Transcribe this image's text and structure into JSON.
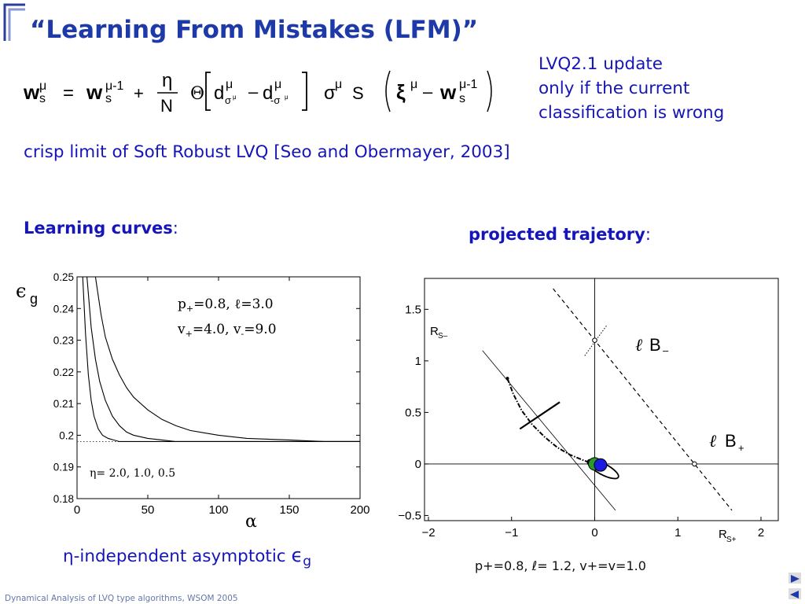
{
  "slide": {
    "title": "“Learning From Mistakes (LFM)”",
    "update_note": [
      "LVQ2.1 update",
      "only if  the current",
      "classification is wrong"
    ],
    "crisp_text": "crisp limit of Soft Robust LVQ  [Seo and Obermayer, 2003]",
    "learning_curves_heading": "Learning curves",
    "learning_curves_colon": ":",
    "trajectory_heading": "projected trajetory",
    "trajectory_colon": ":",
    "asymptotic_prefix": "η-independent asymptotic ",
    "asymptotic_symbol": "ϵ",
    "asymptotic_sub": "g",
    "trajectory_params": "p+=0.8,  ℓ= 1.2, v+=v=1.0",
    "footer": "Dynamical Analysis of LVQ type algorithms, WSOM 2005",
    "accent_color": "#1515b8",
    "title_color": "#1e3aa8"
  },
  "formula": {
    "w_s_mu": "w",
    "eta": "η",
    "N": "N",
    "theta": "Θ",
    "d": "d",
    "sigma_mu": "σ",
    "S": "S",
    "xi": "ξ"
  },
  "nav": {
    "next_icon": "triangle-right-icon",
    "prev_icon": "triangle-left-icon"
  },
  "chart_data": [
    {
      "type": "line",
      "title": "",
      "ylabel_symbol": "ϵ",
      "ylabel_sub": "g",
      "xlabel": "α",
      "xlim": [
        0,
        200
      ],
      "ylim": [
        0.18,
        0.25
      ],
      "xticks": [
        0,
        50,
        100,
        150,
        200
      ],
      "yticks": [
        0.18,
        0.19,
        0.2,
        0.21,
        0.22,
        0.23,
        0.24,
        0.25
      ],
      "ytick_labels": [
        "0.18",
        "0.19",
        "0.2",
        "0.21",
        "0.22",
        "0.23",
        "0.24",
        "0.25"
      ],
      "annotation_line1": "p",
      "annotation_line1_rest": "=0.8,  ℓ=3.0",
      "annotation_line2": "v",
      "annotation_line2_rest": "=4.0,  v",
      "annotation_line2_end": "=9.0",
      "eta_label": "η= 2.0, 1.0, 0.5",
      "asymptote": 0.198,
      "series": [
        {
          "eta": 2.0,
          "x": [
            4,
            6,
            8,
            10,
            12,
            15,
            18,
            22,
            26,
            30,
            35,
            40,
            50,
            60,
            80,
            100,
            150,
            200
          ],
          "y": [
            0.25,
            0.232,
            0.219,
            0.211,
            0.206,
            0.202,
            0.2,
            0.199,
            0.1985,
            0.198,
            0.198,
            0.198,
            0.198,
            0.198,
            0.198,
            0.198,
            0.198,
            0.198
          ]
        },
        {
          "eta": 1.0,
          "x": [
            7,
            10,
            13,
            16,
            20,
            25,
            30,
            35,
            40,
            50,
            60,
            70,
            80,
            100,
            150,
            200
          ],
          "y": [
            0.25,
            0.234,
            0.224,
            0.217,
            0.211,
            0.206,
            0.203,
            0.201,
            0.2,
            0.199,
            0.1985,
            0.198,
            0.198,
            0.198,
            0.198,
            0.198
          ]
        },
        {
          "eta": 0.5,
          "x": [
            13,
            17,
            20,
            25,
            30,
            35,
            40,
            50,
            60,
            70,
            80,
            100,
            120,
            150,
            175,
            200
          ],
          "y": [
            0.25,
            0.238,
            0.231,
            0.224,
            0.219,
            0.215,
            0.212,
            0.208,
            0.205,
            0.203,
            0.2015,
            0.2,
            0.199,
            0.1985,
            0.198,
            0.198
          ]
        }
      ]
    },
    {
      "type": "line",
      "title": "",
      "xlabel": "R",
      "xlabel_sub": "S+",
      "ylabel": "R",
      "ylabel_sub": "S–",
      "xlim": [
        -2,
        2
      ],
      "ylim": [
        -0.55,
        1.8
      ],
      "xticks": [
        -2,
        -1,
        0,
        1,
        2
      ],
      "xtick_labels": [
        "−2",
        "−1",
        "0",
        "1",
        "2"
      ],
      "yticks": [
        -0.5,
        0,
        0.5,
        1,
        1.5
      ],
      "ytick_labels": [
        "−0.5",
        "0",
        "0.5",
        "1",
        "1.5"
      ],
      "label_B_minus": "B",
      "label_B_minus_sub": "–",
      "label_B_plus": "B",
      "label_B_plus_sub": "+",
      "ell": "ℓ",
      "points": [
        {
          "name": "prototype-plus",
          "x": 0.0,
          "y": 0.0,
          "color": "#2a9a2a"
        },
        {
          "name": "prototype-minus",
          "x": 0.07,
          "y": -0.01,
          "color": "#1a1ae0"
        }
      ],
      "marked_points": [
        {
          "x": 1.2,
          "y": 0.0
        },
        {
          "x": 0.0,
          "y": 1.2
        }
      ],
      "dashed_line": {
        "x": [
          -0.5,
          1.65
        ],
        "y": [
          1.7,
          -0.45
        ]
      },
      "decision_line": {
        "x": [
          -1.35,
          0.25
        ],
        "y": [
          1.1,
          -0.45
        ]
      },
      "trajectory": {
        "x": [
          -1.05,
          -0.98,
          -0.88,
          -0.75,
          -0.6,
          -0.45,
          -0.3,
          -0.15,
          -0.05,
          0.0
        ],
        "y": [
          0.83,
          0.68,
          0.52,
          0.38,
          0.26,
          0.16,
          0.09,
          0.04,
          0.01,
          0.0
        ]
      },
      "tick_segment": {
        "x": [
          -0.9,
          -0.42
        ],
        "y": [
          0.34,
          0.6
        ]
      }
    }
  ]
}
